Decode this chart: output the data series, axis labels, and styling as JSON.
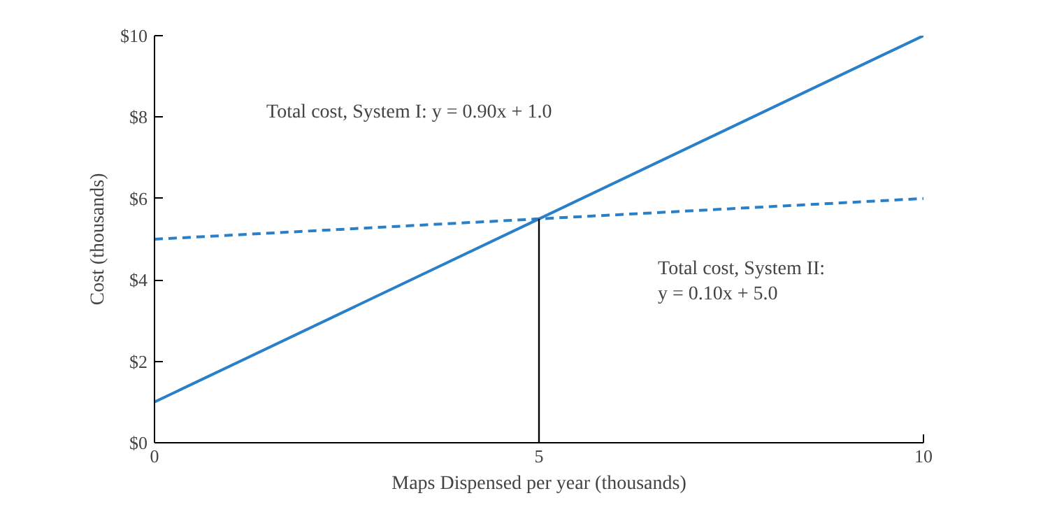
{
  "chart_data": {
    "type": "line",
    "xlabel": "Maps Dispensed per year (thousands)",
    "ylabel": "Cost (thousands)",
    "x": [
      0,
      10
    ],
    "series": [
      {
        "color": "#2a7fc9",
        "values": [
          1.0,
          10.0
        ],
        "line_style": "solid"
      },
      {
        "color": "#2a7fc9",
        "values": [
          5.0,
          6.0
        ],
        "line_style": "dashed"
      },
      {
        "color": "#000000",
        "x": [
          5,
          5
        ],
        "values": [
          0,
          5.5
        ],
        "line_style": "solid"
      }
    ],
    "xlim": [
      0,
      10
    ],
    "xticks": [
      0,
      5,
      10
    ],
    "ylim": [
      0,
      10
    ],
    "yticks": [
      {
        "value": 0,
        "label": "$0"
      },
      {
        "value": 2,
        "label": "$2"
      },
      {
        "value": 4,
        "label": "$4"
      },
      {
        "value": 6,
        "label": "$6"
      },
      {
        "value": 8,
        "label": "$8"
      },
      {
        "value": 10,
        "label": "$10"
      }
    ],
    "grid": false,
    "marker": "none",
    "annotations": [
      "Total cost, System I: y = 0.90x + 1.0",
      "Total cost, System II:\ny = 0.10x + 5.0"
    ]
  }
}
